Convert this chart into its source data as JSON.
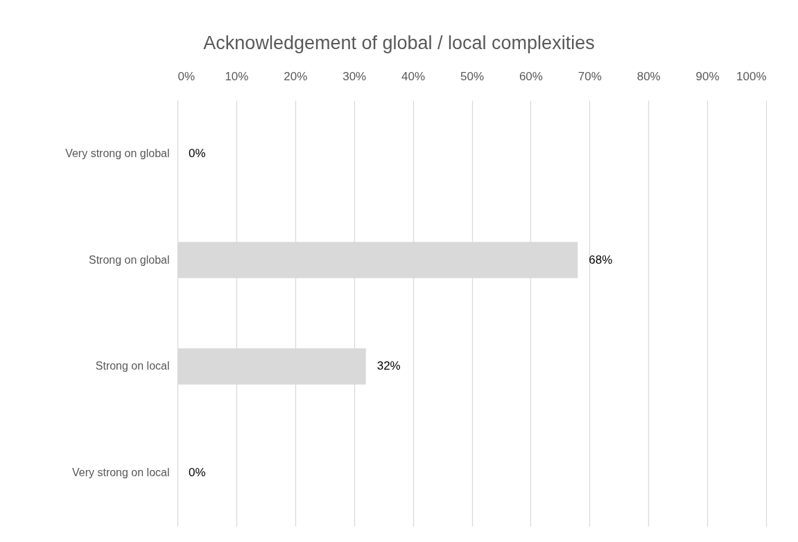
{
  "chart_data": {
    "type": "bar",
    "orientation": "horizontal",
    "title": "Acknowledgement of global / local complexities",
    "categories": [
      "Very strong on global",
      "Strong on global",
      "Strong on local",
      "Very strong on local"
    ],
    "values": [
      0,
      68,
      32,
      0
    ],
    "value_labels": [
      "0%",
      "68%",
      "32%",
      "0%"
    ],
    "color": "#d9d9d9",
    "xlim": [
      0,
      100
    ],
    "xticks": [
      {
        "value": 0,
        "label": "0%"
      },
      {
        "value": 10,
        "label": "10%"
      },
      {
        "value": 20,
        "label": "20%"
      },
      {
        "value": 30,
        "label": "30%"
      },
      {
        "value": 40,
        "label": "40%"
      },
      {
        "value": 50,
        "label": "50%"
      },
      {
        "value": 60,
        "label": "60%"
      },
      {
        "value": 70,
        "label": "70%"
      },
      {
        "value": 80,
        "label": "80%"
      },
      {
        "value": 90,
        "label": "90%"
      },
      {
        "value": 100,
        "label": "100%"
      }
    ],
    "grid": "x"
  }
}
